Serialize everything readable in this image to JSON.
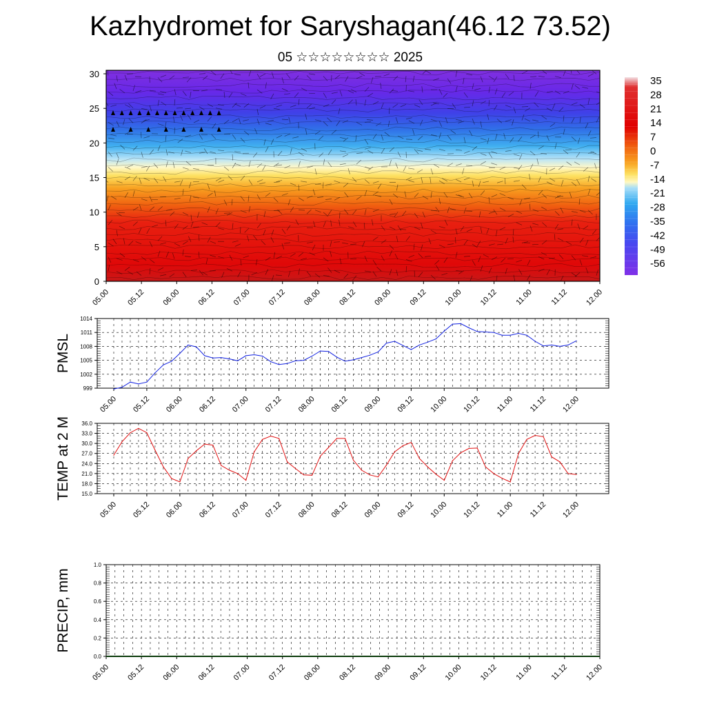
{
  "header": {
    "title": "Kazhydromet for Saryshagan(46.12 73.52)",
    "subtitle": "05 ☆☆☆☆☆☆☆☆ 2025"
  },
  "chart_data": [
    {
      "type": "heatmap",
      "title": "Kazhydromet for Saryshagan(46.12 73.52)",
      "subtitle": "05 ☆☆☆☆☆☆☆☆ 2025",
      "xlabel": "",
      "ylabel": "",
      "x_ticks": [
        "05.00",
        "05.12",
        "06.00",
        "06.12",
        "07.00",
        "07.12",
        "08.00",
        "08.12",
        "09.00",
        "09.12",
        "10.00",
        "10.12",
        "11.00",
        "11.12",
        "12.00"
      ],
      "y_ticks": [
        0,
        5,
        10,
        15,
        20,
        25,
        30
      ],
      "ylim": [
        0,
        30.5
      ],
      "colorbar": {
        "labels": [
          "35",
          "28",
          "21",
          "14",
          "7",
          "0",
          "-7",
          "-14",
          "-21",
          "-28",
          "-35",
          "-42",
          "-49",
          "-56"
        ],
        "colors": [
          "#f2e0e4",
          "#e00000",
          "#e02010",
          "#f05010",
          "#f88010",
          "#f8b020",
          "#fce050",
          "#fff5a0",
          "#8fd8f8",
          "#30b0f0",
          "#3070f0",
          "#4848f0",
          "#6030f0",
          "#8030e8"
        ]
      },
      "approx_profile": {
        "height": [
          0,
          5,
          10,
          15,
          20,
          25,
          30
        ],
        "temperature": [
          30,
          22,
          8,
          -12,
          -45,
          -55,
          -60
        ]
      }
    },
    {
      "type": "line",
      "ylabel": "PMSL",
      "x_ticks": [
        "05.00",
        "05.12",
        "06.00",
        "06.12",
        "07.00",
        "07.12",
        "08.00",
        "08.12",
        "09.00",
        "09.12",
        "10.00",
        "10.12",
        "11.00",
        "11.12",
        "12.00"
      ],
      "y_ticks": [
        "999",
        "1002",
        "1005",
        "1008",
        "1011",
        "1014"
      ],
      "ylim": [
        999,
        1014
      ],
      "grid": true,
      "color": "#1020e0",
      "x": [
        0,
        0.125,
        0.25,
        0.375,
        0.5,
        0.625,
        0.75,
        0.875,
        1,
        1.125,
        1.25,
        1.375,
        1.5,
        1.625,
        1.75,
        1.875,
        2,
        2.125,
        2.25,
        2.375,
        2.5,
        2.625,
        2.75,
        2.875,
        3,
        3.125,
        3.25,
        3.375,
        3.5,
        3.625,
        3.75,
        3.875,
        4,
        4.125,
        4.25,
        4.375,
        4.5,
        4.625,
        4.75,
        4.875,
        5,
        5.125,
        5.25,
        5.375,
        5.5,
        5.625,
        5.75,
        5.875,
        6,
        6.125,
        6.25,
        6.375,
        6.5,
        6.625,
        6.75,
        6.875,
        7
      ],
      "values": [
        998.8,
        999.2,
        1000.3,
        999.9,
        1000.3,
        1002.3,
        1004.0,
        1004.8,
        1006.5,
        1008.3,
        1007.9,
        1006.0,
        1005.5,
        1005.6,
        1005.3,
        1004.9,
        1006.0,
        1006.2,
        1005.9,
        1004.7,
        1004.1,
        1004.3,
        1004.9,
        1005.0,
        1005.9,
        1007.0,
        1006.9,
        1005.7,
        1004.8,
        1005.1,
        1005.6,
        1006.1,
        1006.8,
        1008.7,
        1009.1,
        1008.2,
        1007.3,
        1008.3,
        1008.9,
        1009.6,
        1011.3,
        1012.8,
        1012.9,
        1012.0,
        1011.2,
        1011.1,
        1011.0,
        1010.4,
        1010.4,
        1010.8,
        1010.4,
        1009.1,
        1008.1,
        1008.3,
        1008.0,
        1008.3,
        1009.2
      ]
    },
    {
      "type": "line",
      "ylabel": "TEMP at 2 M",
      "x_ticks": [
        "05.00",
        "05.12",
        "06.00",
        "06.12",
        "07.00",
        "07.12",
        "08.00",
        "08.12",
        "09.00",
        "09.12",
        "10.00",
        "10.12",
        "11.00",
        "11.12",
        "12.00"
      ],
      "y_ticks": [
        "15.0",
        "18.0",
        "21.0",
        "24.0",
        "27.0",
        "30.0",
        "33.0",
        "36.0"
      ],
      "ylim": [
        15,
        36
      ],
      "grid": true,
      "color": "#e01010",
      "x": [
        0,
        0.125,
        0.25,
        0.375,
        0.5,
        0.625,
        0.75,
        0.875,
        1,
        1.125,
        1.25,
        1.375,
        1.5,
        1.625,
        1.75,
        1.875,
        2,
        2.125,
        2.25,
        2.375,
        2.5,
        2.625,
        2.75,
        2.875,
        3,
        3.125,
        3.25,
        3.375,
        3.5,
        3.625,
        3.75,
        3.875,
        4,
        4.125,
        4.25,
        4.375,
        4.5,
        4.625,
        4.75,
        4.875,
        5,
        5.125,
        5.25,
        5.375,
        5.5,
        5.625,
        5.75,
        5.875,
        6,
        6.125,
        6.25,
        6.375,
        6.5,
        6.625,
        6.75,
        6.875,
        7
      ],
      "values": [
        26.5,
        30.5,
        33.2,
        34.5,
        33.2,
        28.0,
        23.0,
        19.5,
        18.5,
        25.5,
        27.8,
        29.8,
        29.5,
        23.4,
        22.0,
        21.0,
        19.0,
        27.5,
        31.2,
        32.2,
        31.5,
        24.5,
        22.5,
        20.6,
        20.5,
        26.2,
        28.8,
        31.5,
        31.5,
        25.0,
        22.0,
        20.6,
        20.0,
        23.5,
        27.5,
        29.3,
        30.3,
        25.5,
        23.0,
        20.8,
        19.0,
        24.8,
        27.2,
        28.5,
        28.6,
        23.0,
        21.0,
        19.6,
        18.5,
        27.0,
        31.2,
        32.4,
        32.0,
        26.0,
        24.5,
        21.0,
        20.7
      ]
    },
    {
      "type": "bar",
      "ylabel": "PRECIP, mm",
      "x_ticks": [
        "05.00",
        "05.12",
        "06.00",
        "06.12",
        "07.00",
        "07.12",
        "08.00",
        "08.12",
        "09.00",
        "09.12",
        "10.00",
        "10.12",
        "11.00",
        "11.12",
        "12.00"
      ],
      "y_ticks": [
        "0.0",
        "0.2",
        "0.4",
        "0.6",
        "0.8",
        "1.0"
      ],
      "ylim": [
        0,
        1
      ],
      "grid": true,
      "values": [
        0,
        0,
        0,
        0,
        0,
        0,
        0,
        0,
        0,
        0,
        0,
        0,
        0,
        0,
        0,
        0,
        0,
        0,
        0,
        0,
        0,
        0,
        0,
        0,
        0,
        0,
        0,
        0,
        0,
        0,
        0,
        0,
        0,
        0,
        0,
        0,
        0,
        0,
        0,
        0,
        0,
        0,
        0,
        0,
        0,
        0,
        0,
        0,
        0,
        0,
        0,
        0,
        0,
        0,
        0,
        0,
        0
      ]
    }
  ]
}
